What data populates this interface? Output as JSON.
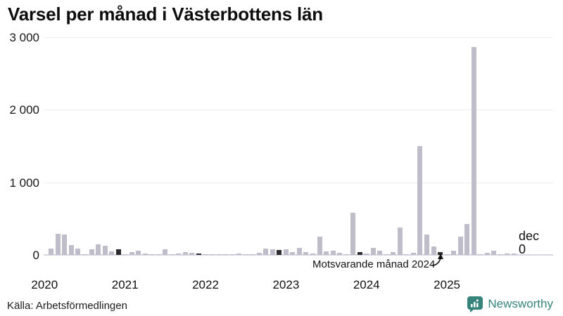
{
  "title": "Varsel per månad i Västerbottens län",
  "source": "Källa: Arbetsförmedlingen",
  "branding": {
    "name": "Newsworthy",
    "color": "#35837b"
  },
  "annotation": {
    "text": "Motsvarande månad 2024",
    "target": "december 2024"
  },
  "latest_label": {
    "month": "dec",
    "value": "0"
  },
  "colors": {
    "bar": "#c0bdcb",
    "december_highlight": "#2d2d31",
    "gridline": "#ececf2",
    "zero_line": "#d7d7e1",
    "text": "#111111",
    "brand": "#35837b"
  },
  "chart_data": {
    "type": "bar",
    "title": "Varsel per månad i Västerbottens län",
    "x_freq": "monthly",
    "x_start": "2020-01",
    "x_end": "2025-12",
    "year_labels": [
      "2020",
      "2021",
      "2022",
      "2023",
      "2024",
      "2025"
    ],
    "ytick_labels": [
      "0",
      "1 000",
      "2 000",
      "3 000"
    ],
    "yticks": [
      0,
      1000,
      2000,
      3000
    ],
    "ylim": [
      0,
      3000
    ],
    "grid": true,
    "highlight_rule": "december bars are dark",
    "series": [
      {
        "year": "2020",
        "values": [
          0,
          90,
          295,
          280,
          135,
          90,
          4,
          77,
          148,
          130,
          48,
          80
        ]
      },
      {
        "year": "2021",
        "values": [
          13,
          35,
          55,
          17,
          6,
          2,
          75,
          4,
          22,
          40,
          32,
          22
        ]
      },
      {
        "year": "2022",
        "values": [
          13,
          3,
          10,
          5,
          8,
          16,
          4,
          6,
          32,
          85,
          75,
          65
        ]
      },
      {
        "year": "2023",
        "values": [
          75,
          38,
          95,
          36,
          22,
          250,
          45,
          55,
          29,
          13,
          580,
          35
        ]
      },
      {
        "year": "2024",
        "values": [
          22,
          100,
          58,
          6,
          35,
          380,
          13,
          33,
          1500,
          280,
          115,
          36
        ]
      },
      {
        "year": "2025",
        "values": [
          2,
          62,
          250,
          425,
          2870,
          13,
          29,
          61,
          10,
          19,
          19,
          0
        ]
      }
    ]
  }
}
